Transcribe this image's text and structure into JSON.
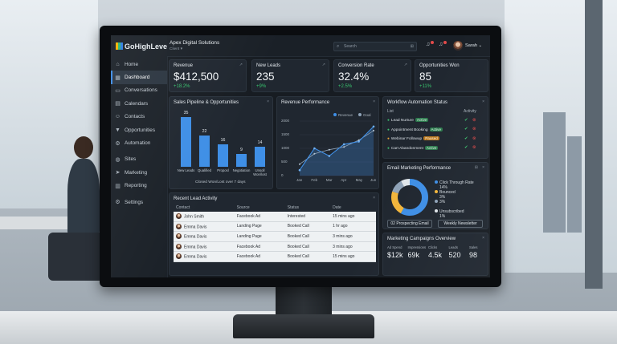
{
  "app": {
    "logo": "GoHighLevel",
    "company": "Apex Digital Solutions",
    "client": "Client ▾"
  },
  "sidebar": {
    "items": [
      {
        "label": "Home",
        "icon": "home-icon",
        "glyph": "⌂"
      },
      {
        "label": "Dashboard",
        "icon": "dashboard-icon",
        "glyph": "▦"
      },
      {
        "label": "Conversations",
        "icon": "chat-icon",
        "glyph": "▭"
      },
      {
        "label": "Calendars",
        "icon": "calendar-icon",
        "glyph": "▤"
      },
      {
        "label": "Contacts",
        "icon": "contacts-icon",
        "glyph": "☺"
      },
      {
        "label": "Opportunities",
        "icon": "funnel-icon",
        "glyph": "▼"
      },
      {
        "label": "Automation",
        "icon": "automation-icon",
        "glyph": "⚙"
      },
      {
        "label": "Sites",
        "icon": "globe-icon",
        "glyph": "◍"
      },
      {
        "label": "Marketing",
        "icon": "megaphone-icon",
        "glyph": "➤"
      },
      {
        "label": "Reporting",
        "icon": "report-icon",
        "glyph": "▥"
      },
      {
        "label": "Settings",
        "icon": "gear-icon",
        "glyph": "⚙"
      }
    ],
    "active_index": 1
  },
  "header": {
    "search_placeholder": "Search",
    "user_name": "Sarah ⌄"
  },
  "kpis": [
    {
      "title": "Revenue",
      "value": "$412,500",
      "delta": "+18.2%"
    },
    {
      "title": "New Leads",
      "value": "235",
      "delta": "+9%"
    },
    {
      "title": "Conversion Rate",
      "value": "32.4%",
      "delta": "+2.5%"
    },
    {
      "title": "Opportunities Won",
      "value": "85",
      "delta": "+11%"
    }
  ],
  "pipeline": {
    "title": "Sales Pipeline & Opportunities",
    "caption": "Closed Won/Lost over 7 days",
    "chart_data": {
      "type": "bar",
      "categories": [
        "New Leads",
        "Qualified",
        "Proposal",
        "Negotiation",
        "Closed Won/Lost"
      ],
      "display_labels": [
        "New Leads",
        "Qualified",
        "Proposl",
        "Negotiation",
        "Unsoll Won/lost"
      ],
      "values": [
        35,
        22,
        16,
        9,
        14
      ],
      "ylim": [
        0,
        38
      ]
    }
  },
  "revenue": {
    "title": "Revenue Performance",
    "legend": [
      "Revenue",
      "Goal"
    ],
    "colors": {
      "revenue": "#3f8fe6",
      "goal": "#8fa3b8"
    },
    "chart_data": {
      "type": "line",
      "x": [
        "Jan",
        "Feb",
        "Mar",
        "Apr",
        "May",
        "Jun"
      ],
      "series": [
        {
          "name": "Revenue",
          "values": [
            200,
            1000,
            720,
            1150,
            1250,
            1800
          ]
        },
        {
          "name": "Goal",
          "values": [
            420,
            800,
            950,
            1050,
            1300,
            1650
          ]
        }
      ],
      "yticks": [
        "2000",
        "1500",
        "1000",
        "500",
        "0"
      ],
      "ylim": [
        0,
        2000
      ]
    }
  },
  "workflow": {
    "title": "Workflow Automation Status",
    "col_list": "List",
    "col_activity": "Activity",
    "rows": [
      {
        "name": "Lead Nurture",
        "status": "Active",
        "kind": "green"
      },
      {
        "name": "Appointment Booking",
        "status": "Active",
        "kind": "green"
      },
      {
        "name": "Webinar Followup",
        "status": "Paused",
        "kind": "orange"
      },
      {
        "name": "Cart Abandonment",
        "status": "Active",
        "kind": "green"
      }
    ]
  },
  "leads": {
    "title": "Recent Lead Activity",
    "columns": [
      "Contact",
      "Source",
      "Status",
      "Date"
    ],
    "rows": [
      [
        "John Smith",
        "Facebook Ad",
        "Interested",
        "15 mins ago"
      ],
      [
        "Emma Davis",
        "Landing Page",
        "Booked Call",
        "1 hr ago"
      ],
      [
        "Emma Davis",
        "Landing Page",
        "Booked Call",
        "3 mins ago"
      ],
      [
        "Emma Davis",
        "Facebook Ad",
        "Booked Call",
        "3 mins ago"
      ],
      [
        "Emma Davis",
        "Facebook Ad",
        "Booked Call",
        "15 mins ago"
      ]
    ]
  },
  "email": {
    "title": "Email Marketing Performance",
    "legend": [
      {
        "label": "Click Through Rate",
        "value": "14%",
        "color": "#3f8fe6"
      },
      {
        "label": "Bounced",
        "value": "3%",
        "color": "#f2b63c"
      },
      {
        "label": "",
        "value": "3%",
        "color": "#8fa3b8"
      },
      {
        "label": "Unsubscribed",
        "value": "1%",
        "color": "#e0e6ea"
      }
    ],
    "chart_data": {
      "type": "pie",
      "categories": [
        "Click Through Rate",
        "Bounced",
        "Other",
        "Unsubscribed"
      ],
      "values": [
        58,
        22,
        12,
        8
      ]
    },
    "buttons": [
      "02 Prospecting Email",
      "Weekly Newsletter"
    ]
  },
  "campaigns": {
    "title": "Marketing Campaigns Overview",
    "metrics": [
      {
        "label": "Ad Spend",
        "value": "$12k"
      },
      {
        "label": "Impressions",
        "value": "69k"
      },
      {
        "label": "Clicks",
        "value": "4.5k"
      },
      {
        "label": "Leads",
        "value": "520"
      },
      {
        "label": "Sales",
        "value": "98"
      }
    ]
  }
}
